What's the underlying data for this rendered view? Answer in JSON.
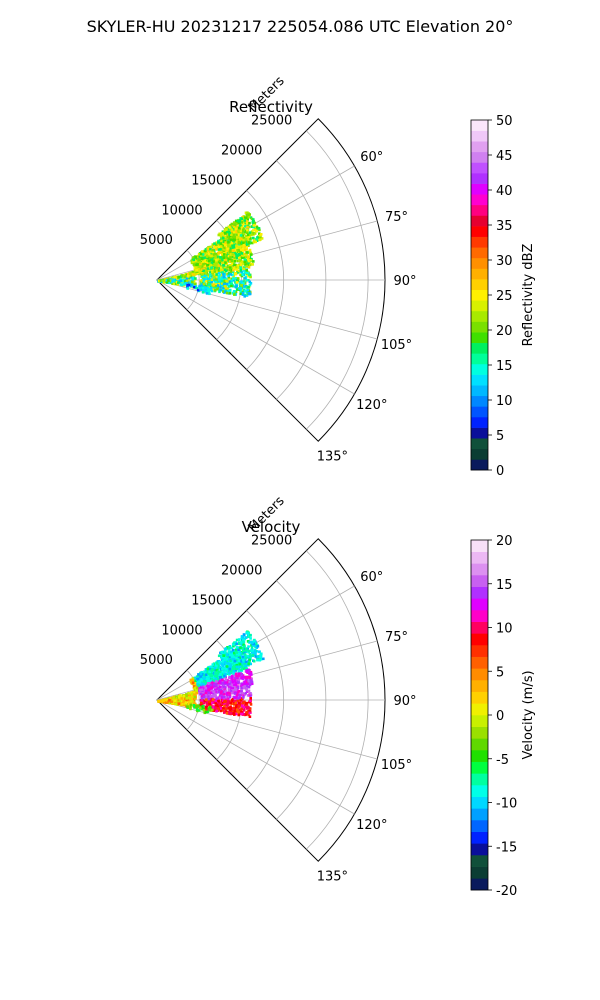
{
  "figure_title": "SKYLER-HU  20231217  225054.086 UTC Elevation 20°",
  "chart_data": [
    {
      "type": "polar-sector",
      "title": "Reflectivity",
      "radial_label": "Meters",
      "radial_ticks": [
        5000,
        10000,
        15000,
        20000,
        25000
      ],
      "angle_ticks": [
        "60°",
        "75°",
        "90°",
        "105°",
        "120°",
        "135°"
      ],
      "azimuth_range_deg": [
        45,
        135
      ],
      "colorbar": {
        "label": "Reflectivity dBZ",
        "range": [
          0,
          50
        ],
        "ticks": [
          "0",
          "5",
          "10",
          "15",
          "20",
          "25",
          "30",
          "35",
          "40",
          "45",
          "50"
        ],
        "palette": "pyart_HomeyerRainbow"
      }
    },
    {
      "type": "polar-sector",
      "title": "Velocity",
      "radial_label": "Meters",
      "radial_ticks": [
        5000,
        10000,
        15000,
        20000,
        25000
      ],
      "angle_ticks": [
        "60°",
        "75°",
        "90°",
        "105°",
        "120°",
        "135°"
      ],
      "azimuth_range_deg": [
        45,
        135
      ],
      "colorbar": {
        "label": "Velocity (m/s)",
        "range": [
          -20,
          20
        ],
        "ticks": [
          "-20",
          "-15",
          "-10",
          "-5",
          "0",
          "5",
          "10",
          "15",
          "20"
        ],
        "palette": "pyart_HomeyerRainbow"
      }
    }
  ]
}
